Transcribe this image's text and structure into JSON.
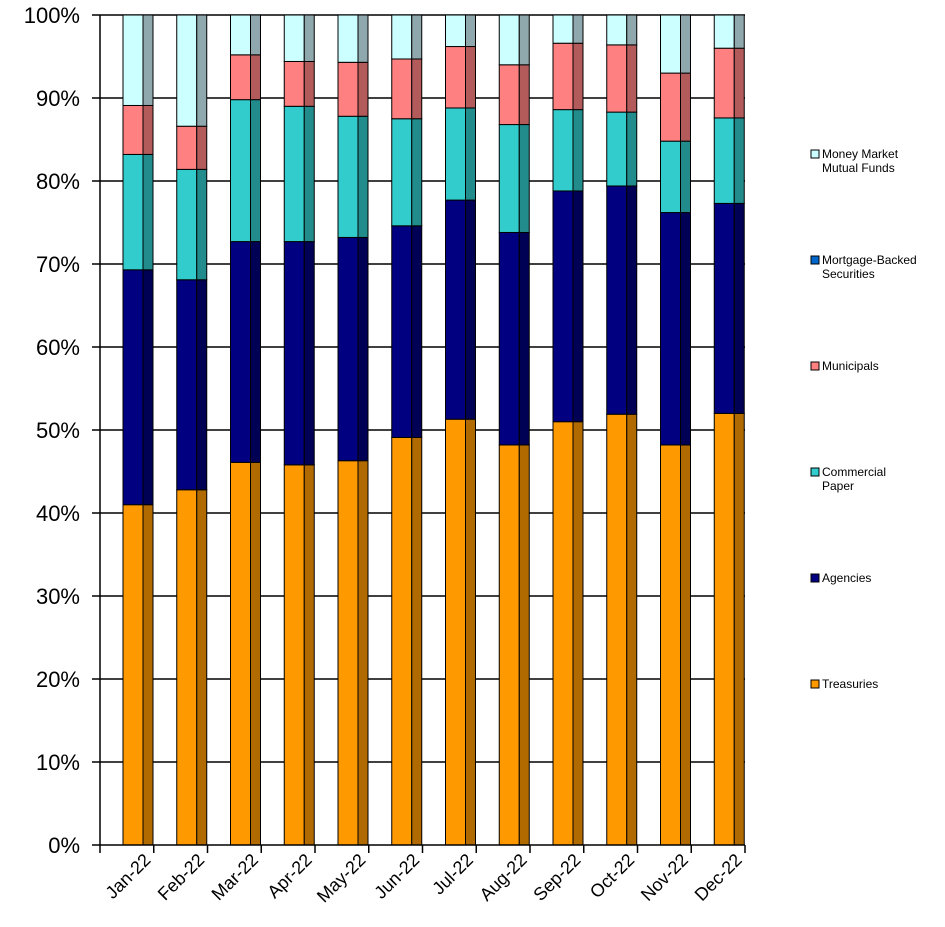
{
  "chart_data": {
    "type": "bar",
    "stacked": true,
    "normalized": true,
    "three_d": true,
    "categories": [
      "Jan-22",
      "Feb-22",
      "Mar-22",
      "Apr-22",
      "May-22",
      "Jun-22",
      "Jul-22",
      "Aug-22",
      "Sep-22",
      "Oct-22",
      "Nov-22",
      "Dec-22"
    ],
    "ylim": [
      0,
      100
    ],
    "yticks": [
      "0%",
      "10%",
      "20%",
      "30%",
      "40%",
      "50%",
      "60%",
      "70%",
      "80%",
      "90%",
      "100%"
    ],
    "grid": true,
    "legend_position": "right",
    "series": [
      {
        "name": "Treasuries",
        "color": "#FF9900",
        "values": [
          41.0,
          42.8,
          46.1,
          45.8,
          46.3,
          49.1,
          51.3,
          48.2,
          51.0,
          51.9,
          48.2,
          52.0
        ]
      },
      {
        "name": "Agencies",
        "color": "#000080",
        "values": [
          28.3,
          25.3,
          26.6,
          26.9,
          26.9,
          25.5,
          26.4,
          25.6,
          27.8,
          27.5,
          28.0,
          25.3
        ]
      },
      {
        "name": "Commercial Paper",
        "color": "#33CCCC",
        "values": [
          13.9,
          13.3,
          17.1,
          16.3,
          14.6,
          12.9,
          11.1,
          13.0,
          9.8,
          8.9,
          8.6,
          10.3
        ]
      },
      {
        "name": "Municipals",
        "color": "#FF8080",
        "values": [
          5.9,
          5.2,
          5.4,
          5.4,
          6.5,
          7.2,
          7.4,
          7.2,
          8.0,
          8.1,
          8.2,
          8.4
        ]
      },
      {
        "name": "Mortgage-Backed Securities",
        "color": "#0066CC",
        "values": [
          0,
          0,
          0,
          0,
          0,
          0,
          0,
          0,
          0,
          0,
          0,
          0
        ]
      },
      {
        "name": "Money Market Mutual Funds",
        "color": "#CCFFFF",
        "values": [
          10.9,
          13.4,
          4.8,
          5.6,
          5.7,
          5.3,
          3.8,
          6.0,
          3.4,
          3.6,
          7.0,
          4.0
        ]
      }
    ],
    "legend_order": [
      "Money Market Mutual Funds",
      "Mortgage-Backed Securities",
      "Municipals",
      "Commercial Paper",
      "Agencies",
      "Treasuries"
    ],
    "legend_lines": {
      "Money Market Mutual Funds": [
        "Money Market",
        "Mutual Funds"
      ],
      "Mortgage-Backed Securities": [
        "Mortgage-Backed",
        "Securities"
      ],
      "Municipals": [
        "Municipals"
      ],
      "Commercial Paper": [
        "Commercial",
        "Paper"
      ],
      "Agencies": [
        "Agencies"
      ],
      "Treasuries": [
        "Treasuries"
      ]
    },
    "depth_shade_colors": {
      "Treasuries": "#B06A00",
      "Agencies": "#000055",
      "Commercial Paper": "#228C8C",
      "Municipals": "#B35A5A",
      "Mortgage-Backed Securities": "#004A94",
      "Money Market Mutual Funds": "#8FA8AE"
    },
    "axis_color": "#000000",
    "grid_color": "#000000"
  }
}
